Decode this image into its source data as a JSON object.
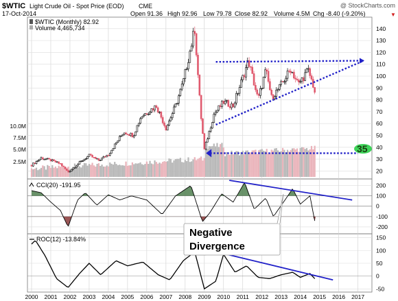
{
  "header": {
    "symbol": "$WTIC",
    "name": "Light Crude Oil - Spot Price (EOD)",
    "exchange": "CME",
    "watermark": "@ StockCharts.com",
    "date": "17-Oct-2014",
    "open": "Open 91.36",
    "high": "High 92.96",
    "low": "Low 79.78",
    "close": "Close 82.92",
    "volume": "Volume 4.5M",
    "chg": "Chg -8.40 (-9.20%)",
    "chg_arrow": "▼"
  },
  "legend": {
    "price": "$WTIC (Monthly) 82.92",
    "volume": "Volume 4,465,734",
    "cci": "CCI(20) -191.95",
    "roc": "ROC(12) -13.84%"
  },
  "annotations": {
    "divergence_line1": "Negative",
    "divergence_line2": "Divergence",
    "support_badge": "35"
  },
  "colors": {
    "up": "#000000",
    "down": "#e05a6e",
    "trendline": "#2020c8",
    "badge": "#3fd45a",
    "cci_fill_pos": "#4f7f4f",
    "cci_fill_neg": "#8a3a3a"
  },
  "chart_data": [
    {
      "type": "candlestick",
      "title": "$WTIC Light Crude Oil - Spot Price (EOD) CME",
      "frequency": "monthly",
      "x_ticks": [
        "2000",
        "2001",
        "2002",
        "2003",
        "2004",
        "2005",
        "2006",
        "2007",
        "2008",
        "2009",
        "2010",
        "2011",
        "2012",
        "2013",
        "2014",
        "2015",
        "2016",
        "2017"
      ],
      "y_ticks": [
        20,
        30,
        40,
        50,
        60,
        70,
        80,
        90,
        100,
        110,
        120,
        130,
        140
      ],
      "ylim": [
        15,
        148
      ],
      "volume_ticks": [
        "2.5M",
        "5.0M",
        "7.5M",
        "10.0M"
      ],
      "approx_close_path": [
        {
          "x": 2000.0,
          "y": 25
        },
        {
          "x": 2000.5,
          "y": 31
        },
        {
          "x": 2001.0,
          "y": 29
        },
        {
          "x": 2001.5,
          "y": 26
        },
        {
          "x": 2001.9,
          "y": 19
        },
        {
          "x": 2002.5,
          "y": 27
        },
        {
          "x": 2003.0,
          "y": 33
        },
        {
          "x": 2003.5,
          "y": 29
        },
        {
          "x": 2004.0,
          "y": 34
        },
        {
          "x": 2004.8,
          "y": 53
        },
        {
          "x": 2005.3,
          "y": 50
        },
        {
          "x": 2005.7,
          "y": 66
        },
        {
          "x": 2006.5,
          "y": 75
        },
        {
          "x": 2007.0,
          "y": 56
        },
        {
          "x": 2007.5,
          "y": 75
        },
        {
          "x": 2007.9,
          "y": 95
        },
        {
          "x": 2008.5,
          "y": 140
        },
        {
          "x": 2008.8,
          "y": 70
        },
        {
          "x": 2009.0,
          "y": 38
        },
        {
          "x": 2009.5,
          "y": 68
        },
        {
          "x": 2010.0,
          "y": 78
        },
        {
          "x": 2010.5,
          "y": 75
        },
        {
          "x": 2011.3,
          "y": 113
        },
        {
          "x": 2011.8,
          "y": 80
        },
        {
          "x": 2012.2,
          "y": 105
        },
        {
          "x": 2012.5,
          "y": 82
        },
        {
          "x": 2012.9,
          "y": 90
        },
        {
          "x": 2013.5,
          "y": 106
        },
        {
          "x": 2013.9,
          "y": 93
        },
        {
          "x": 2014.4,
          "y": 105
        },
        {
          "x": 2014.7,
          "y": 91
        },
        {
          "x": 2014.8,
          "y": 83
        }
      ],
      "trendlines": [
        {
          "name": "upper",
          "from": {
            "x": 2009.6,
            "y": 112
          },
          "to": {
            "x": 2017.3,
            "y": 113
          }
        },
        {
          "name": "lower",
          "from": {
            "x": 2009.6,
            "y": 59
          },
          "to": {
            "x": 2017.3,
            "y": 113
          }
        },
        {
          "name": "support",
          "from": {
            "x": 2009.3,
            "y": 35
          },
          "to": {
            "x": 2017.0,
            "y": 35
          }
        }
      ]
    },
    {
      "type": "line",
      "title": "CCI(20) -191.95",
      "y_ticks": [
        200,
        100,
        0,
        -100,
        -200
      ],
      "ylim": [
        -260,
        250
      ],
      "levels": [
        100,
        -100
      ],
      "approx_values": [
        {
          "x": 2000.0,
          "y": 150
        },
        {
          "x": 2000.5,
          "y": 130
        },
        {
          "x": 2001.0,
          "y": 40
        },
        {
          "x": 2001.5,
          "y": -40
        },
        {
          "x": 2001.9,
          "y": -200
        },
        {
          "x": 2002.4,
          "y": 60
        },
        {
          "x": 2002.8,
          "y": 130
        },
        {
          "x": 2003.4,
          "y": 10
        },
        {
          "x": 2004.0,
          "y": 110
        },
        {
          "x": 2004.6,
          "y": 60
        },
        {
          "x": 2005.2,
          "y": 100
        },
        {
          "x": 2006.0,
          "y": 60
        },
        {
          "x": 2006.8,
          "y": -80
        },
        {
          "x": 2007.5,
          "y": 100
        },
        {
          "x": 2008.3,
          "y": 200
        },
        {
          "x": 2008.9,
          "y": -150
        },
        {
          "x": 2009.3,
          "y": -60
        },
        {
          "x": 2009.9,
          "y": 120
        },
        {
          "x": 2010.5,
          "y": 40
        },
        {
          "x": 2011.1,
          "y": 230
        },
        {
          "x": 2011.6,
          "y": -30
        },
        {
          "x": 2012.2,
          "y": 80
        },
        {
          "x": 2012.6,
          "y": -100
        },
        {
          "x": 2013.2,
          "y": 60
        },
        {
          "x": 2013.6,
          "y": 170
        },
        {
          "x": 2014.0,
          "y": 20
        },
        {
          "x": 2014.5,
          "y": 100
        },
        {
          "x": 2014.8,
          "y": -190
        }
      ],
      "trendline": {
        "from": {
          "x": 2010.3,
          "y": 250
        },
        "to": {
          "x": 2016.7,
          "y": 60
        }
      }
    },
    {
      "type": "line",
      "title": "ROC(12) -13.84%",
      "y_ticks": [
        150,
        100,
        50,
        0,
        -50
      ],
      "ylim": [
        -60,
        160
      ],
      "approx_values": [
        {
          "x": 2000.0,
          "y": 125
        },
        {
          "x": 2000.2,
          "y": 140
        },
        {
          "x": 2000.7,
          "y": 80
        },
        {
          "x": 2001.3,
          "y": -10
        },
        {
          "x": 2001.9,
          "y": -45
        },
        {
          "x": 2002.5,
          "y": 10
        },
        {
          "x": 2003.0,
          "y": 50
        },
        {
          "x": 2003.6,
          "y": 5
        },
        {
          "x": 2004.4,
          "y": 60
        },
        {
          "x": 2005.0,
          "y": 40
        },
        {
          "x": 2005.8,
          "y": 55
        },
        {
          "x": 2006.6,
          "y": 5
        },
        {
          "x": 2007.2,
          "y": -15
        },
        {
          "x": 2007.9,
          "y": 60
        },
        {
          "x": 2008.5,
          "y": 95
        },
        {
          "x": 2009.0,
          "y": -50
        },
        {
          "x": 2009.6,
          "y": -20
        },
        {
          "x": 2010.0,
          "y": 85
        },
        {
          "x": 2010.6,
          "y": 15
        },
        {
          "x": 2011.2,
          "y": 40
        },
        {
          "x": 2011.8,
          "y": -5
        },
        {
          "x": 2012.4,
          "y": -10
        },
        {
          "x": 2013.0,
          "y": 5
        },
        {
          "x": 2013.6,
          "y": 15
        },
        {
          "x": 2014.0,
          "y": -5
        },
        {
          "x": 2014.5,
          "y": 10
        },
        {
          "x": 2014.8,
          "y": -14
        }
      ],
      "trendline": {
        "from": {
          "x": 2009.9,
          "y": 90
        },
        "to": {
          "x": 2015.7,
          "y": -15
        }
      }
    }
  ]
}
